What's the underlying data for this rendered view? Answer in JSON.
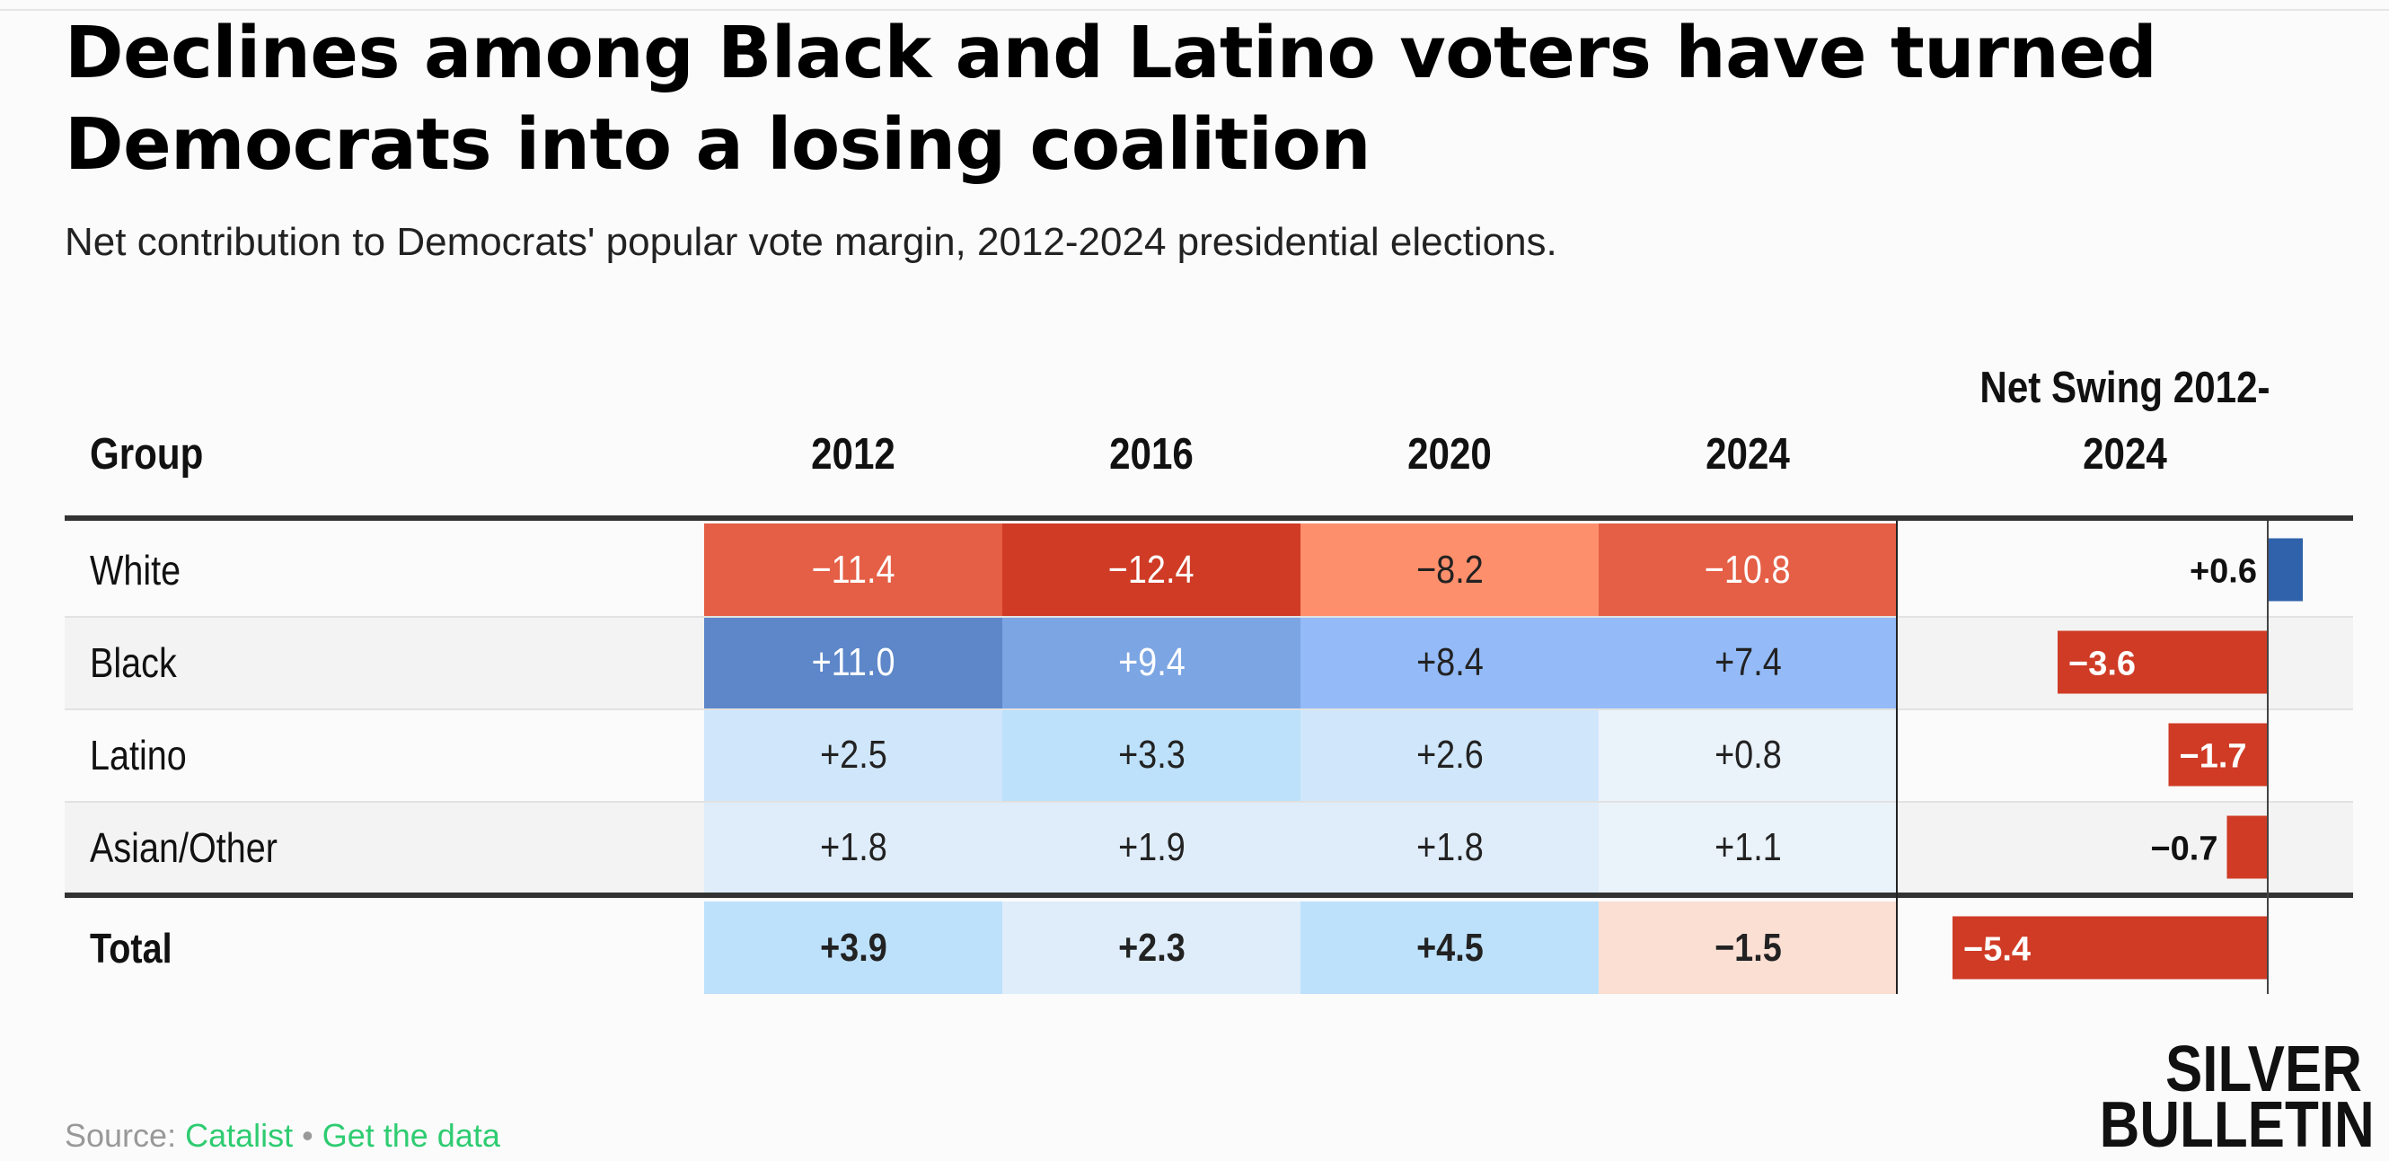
{
  "title": "Declines among Black and Latino voters have turned Democrats into a losing coalition",
  "subtitle": "Net contribution to Democrats' popular vote margin, 2012-2024 presidential elections.",
  "headers": {
    "group": "Group",
    "y2012": "2012",
    "y2016": "2016",
    "y2020": "2020",
    "y2024": "2024",
    "swing_line1": "Net Swing 2012-",
    "swing_line2": "2024"
  },
  "chart_data": {
    "type": "table",
    "columns": [
      "Group",
      "2012",
      "2016",
      "2020",
      "2024",
      "Net Swing 2012-2024"
    ],
    "rows": [
      {
        "group": "White",
        "values": [
          "−11.4",
          "−12.4",
          "−8.2",
          "−10.8"
        ],
        "swing": 0.6,
        "swing_label": "+0.6"
      },
      {
        "group": "Black",
        "values": [
          "+11.0",
          "+9.4",
          "+8.4",
          "+7.4"
        ],
        "swing": -3.6,
        "swing_label": "−3.6"
      },
      {
        "group": "Latino",
        "values": [
          "+2.5",
          "+3.3",
          "+2.6",
          "+0.8"
        ],
        "swing": -1.7,
        "swing_label": "−1.7"
      },
      {
        "group": "Asian/Other",
        "values": [
          "+1.8",
          "+1.9",
          "+1.8",
          "+1.1"
        ],
        "swing": -0.7,
        "swing_label": "−0.7"
      }
    ],
    "total": {
      "group": "Total",
      "values": [
        "+3.9",
        "+2.3",
        "+4.5",
        "−1.5"
      ],
      "swing": -5.4,
      "swing_label": "−5.4"
    }
  },
  "colors": {
    "red_strong": "#cf3b25",
    "red": "#dd5035",
    "red_mid": "#e45f45",
    "red_light": "#fe8f6c",
    "red_pale": "#fbdfd3",
    "blue_strong": "#5d87c9",
    "blue": "#7ca5e3",
    "blue_mid": "#94bbf8",
    "blue_light": "#bde1fb",
    "blue_pale": "#d0e7fb",
    "blue_paler": "#dfedfa",
    "blue_palest": "#eaf2fa",
    "bar_positive": "#2f62aa",
    "bar_negative": "#cf3b25"
  },
  "footer": {
    "source_label": "Source: ",
    "source_link": "Catalist",
    "separator": " • ",
    "data_link": "Get the data"
  },
  "logo": {
    "line1": "SILVER",
    "line2": "BULLETIN"
  }
}
